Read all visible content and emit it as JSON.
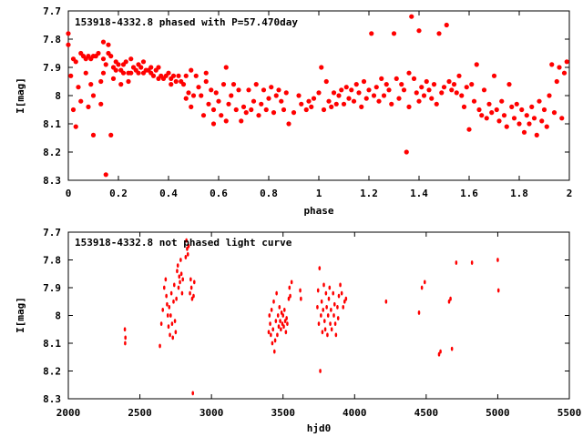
{
  "chart_data": [
    {
      "type": "scatter",
      "title": "153918-4332.8 phased with P=57.470day",
      "xlabel": "phase",
      "ylabel": "I[mag]",
      "xlim": [
        0,
        2
      ],
      "ylim": [
        8.3,
        7.7
      ],
      "y_inverted": true,
      "x_ticks": [
        "0",
        "0.2",
        "0.4",
        "0.6",
        "0.8",
        "1",
        "1.2",
        "1.4",
        "1.6",
        "1.8",
        "2"
      ],
      "y_ticks": [
        "7.7",
        "7.8",
        "7.9",
        "8",
        "8.1",
        "8.2",
        "8.3"
      ],
      "grid": false,
      "marker_color": "#ff0000",
      "points": [
        [
          0.0,
          7.78
        ],
        [
          0.0,
          7.82
        ],
        [
          0.01,
          7.93
        ],
        [
          0.02,
          7.87
        ],
        [
          0.02,
          8.05
        ],
        [
          0.03,
          8.11
        ],
        [
          0.03,
          7.88
        ],
        [
          0.04,
          7.97
        ],
        [
          0.05,
          7.85
        ],
        [
          0.05,
          8.02
        ],
        [
          0.06,
          7.86
        ],
        [
          0.07,
          7.87
        ],
        [
          0.07,
          7.92
        ],
        [
          0.08,
          7.86
        ],
        [
          0.08,
          8.04
        ],
        [
          0.09,
          7.87
        ],
        [
          0.09,
          7.96
        ],
        [
          0.1,
          7.86
        ],
        [
          0.1,
          8.0
        ],
        [
          0.1,
          8.14
        ],
        [
          0.11,
          7.86
        ],
        [
          0.12,
          7.85
        ],
        [
          0.13,
          7.95
        ],
        [
          0.13,
          8.03
        ],
        [
          0.14,
          7.81
        ],
        [
          0.14,
          7.87
        ],
        [
          0.14,
          7.92
        ],
        [
          0.15,
          7.89
        ],
        [
          0.15,
          8.28
        ],
        [
          0.16,
          7.85
        ],
        [
          0.16,
          7.82
        ],
        [
          0.17,
          7.86
        ],
        [
          0.17,
          8.14
        ],
        [
          0.18,
          7.9
        ],
        [
          0.18,
          7.94
        ],
        [
          0.19,
          7.88
        ],
        [
          0.19,
          7.91
        ],
        [
          0.2,
          7.89
        ],
        [
          0.21,
          7.96
        ],
        [
          0.21,
          7.91
        ],
        [
          0.22,
          7.89
        ],
        [
          0.22,
          7.92
        ],
        [
          0.23,
          7.88
        ],
        [
          0.24,
          7.92
        ],
        [
          0.24,
          7.95
        ],
        [
          0.25,
          7.92
        ],
        [
          0.25,
          7.87
        ],
        [
          0.26,
          7.9
        ],
        [
          0.27,
          7.91
        ],
        [
          0.28,
          7.89
        ],
        [
          0.28,
          7.92
        ],
        [
          0.29,
          7.9
        ],
        [
          0.3,
          7.88
        ],
        [
          0.3,
          7.92
        ],
        [
          0.31,
          7.91
        ],
        [
          0.32,
          7.91
        ],
        [
          0.33,
          7.92
        ],
        [
          0.33,
          7.9
        ],
        [
          0.34,
          7.93
        ],
        [
          0.35,
          7.91
        ],
        [
          0.36,
          7.9
        ],
        [
          0.36,
          7.94
        ],
        [
          0.37,
          7.93
        ],
        [
          0.38,
          7.94
        ],
        [
          0.39,
          7.93
        ],
        [
          0.4,
          7.92
        ],
        [
          0.41,
          7.96
        ],
        [
          0.41,
          7.94
        ],
        [
          0.42,
          7.93
        ],
        [
          0.43,
          7.95
        ],
        [
          0.44,
          7.93
        ],
        [
          0.45,
          7.95
        ],
        [
          0.46,
          7.96
        ],
        [
          0.47,
          7.93
        ],
        [
          0.47,
          8.01
        ],
        [
          0.48,
          7.99
        ],
        [
          0.49,
          8.04
        ],
        [
          0.49,
          7.91
        ],
        [
          0.5,
          8.0
        ],
        [
          0.51,
          7.93
        ],
        [
          0.52,
          7.97
        ],
        [
          0.53,
          8.0
        ],
        [
          0.54,
          8.07
        ],
        [
          0.55,
          7.95
        ],
        [
          0.55,
          7.92
        ],
        [
          0.56,
          8.03
        ],
        [
          0.57,
          7.98
        ],
        [
          0.58,
          8.05
        ],
        [
          0.58,
          8.1
        ],
        [
          0.59,
          7.99
        ],
        [
          0.6,
          8.02
        ],
        [
          0.61,
          8.07
        ],
        [
          0.62,
          7.96
        ],
        [
          0.63,
          8.09
        ],
        [
          0.63,
          7.9
        ],
        [
          0.64,
          8.03
        ],
        [
          0.65,
          8.0
        ],
        [
          0.66,
          7.96
        ],
        [
          0.67,
          8.05
        ],
        [
          0.68,
          7.98
        ],
        [
          0.69,
          8.09
        ],
        [
          0.7,
          8.04
        ],
        [
          0.71,
          8.06
        ],
        [
          0.72,
          7.98
        ],
        [
          0.73,
          8.05
        ],
        [
          0.74,
          8.02
        ],
        [
          0.75,
          7.96
        ],
        [
          0.76,
          8.07
        ],
        [
          0.77,
          8.03
        ],
        [
          0.78,
          7.98
        ],
        [
          0.79,
          8.05
        ],
        [
          0.8,
          8.01
        ],
        [
          0.81,
          7.97
        ],
        [
          0.82,
          8.06
        ],
        [
          0.83,
          8.0
        ],
        [
          0.84,
          7.98
        ],
        [
          0.85,
          8.02
        ],
        [
          0.86,
          8.05
        ],
        [
          0.87,
          7.99
        ],
        [
          0.88,
          8.1
        ],
        [
          0.9,
          8.06
        ],
        [
          0.92,
          8.0
        ],
        [
          0.93,
          8.03
        ],
        [
          0.95,
          8.05
        ],
        [
          0.96,
          8.02
        ],
        [
          0.97,
          8.04
        ],
        [
          0.98,
          8.01
        ],
        [
          1.0,
          7.99
        ],
        [
          1.01,
          7.9
        ],
        [
          1.02,
          8.05
        ],
        [
          1.03,
          7.95
        ],
        [
          1.04,
          8.02
        ],
        [
          1.05,
          8.04
        ],
        [
          1.06,
          7.99
        ],
        [
          1.07,
          8.03
        ],
        [
          1.08,
          8.0
        ],
        [
          1.09,
          7.98
        ],
        [
          1.1,
          8.03
        ],
        [
          1.11,
          7.97
        ],
        [
          1.12,
          8.01
        ],
        [
          1.13,
          7.98
        ],
        [
          1.14,
          8.02
        ],
        [
          1.15,
          7.96
        ],
        [
          1.16,
          7.99
        ],
        [
          1.17,
          8.04
        ],
        [
          1.18,
          7.95
        ],
        [
          1.19,
          8.01
        ],
        [
          1.2,
          7.98
        ],
        [
          1.21,
          7.78
        ],
        [
          1.22,
          8.0
        ],
        [
          1.23,
          7.97
        ],
        [
          1.24,
          8.02
        ],
        [
          1.25,
          7.94
        ],
        [
          1.26,
          8.0
        ],
        [
          1.27,
          7.96
        ],
        [
          1.28,
          7.98
        ],
        [
          1.29,
          8.03
        ],
        [
          1.3,
          7.78
        ],
        [
          1.31,
          7.94
        ],
        [
          1.32,
          8.01
        ],
        [
          1.33,
          7.96
        ],
        [
          1.34,
          7.98
        ],
        [
          1.35,
          8.2
        ],
        [
          1.36,
          7.92
        ],
        [
          1.36,
          8.04
        ],
        [
          1.37,
          7.72
        ],
        [
          1.38,
          7.94
        ],
        [
          1.39,
          7.99
        ],
        [
          1.4,
          8.02
        ],
        [
          1.4,
          7.77
        ],
        [
          1.41,
          7.97
        ],
        [
          1.42,
          8.0
        ],
        [
          1.43,
          7.95
        ],
        [
          1.44,
          7.98
        ],
        [
          1.45,
          8.01
        ],
        [
          1.46,
          7.96
        ],
        [
          1.47,
          8.03
        ],
        [
          1.48,
          7.78
        ],
        [
          1.49,
          7.99
        ],
        [
          1.5,
          7.97
        ],
        [
          1.51,
          7.75
        ],
        [
          1.52,
          7.95
        ],
        [
          1.53,
          7.98
        ],
        [
          1.54,
          7.96
        ],
        [
          1.55,
          7.99
        ],
        [
          1.56,
          7.93
        ],
        [
          1.57,
          8.0
        ],
        [
          1.58,
          8.04
        ],
        [
          1.59,
          7.97
        ],
        [
          1.6,
          8.12
        ],
        [
          1.61,
          7.96
        ],
        [
          1.62,
          8.02
        ],
        [
          1.63,
          7.89
        ],
        [
          1.64,
          8.05
        ],
        [
          1.65,
          8.07
        ],
        [
          1.66,
          7.98
        ],
        [
          1.67,
          8.08
        ],
        [
          1.68,
          8.03
        ],
        [
          1.69,
          8.06
        ],
        [
          1.7,
          7.93
        ],
        [
          1.71,
          8.05
        ],
        [
          1.72,
          8.09
        ],
        [
          1.73,
          8.02
        ],
        [
          1.74,
          8.07
        ],
        [
          1.75,
          8.11
        ],
        [
          1.76,
          7.96
        ],
        [
          1.77,
          8.04
        ],
        [
          1.78,
          8.08
        ],
        [
          1.79,
          8.03
        ],
        [
          1.8,
          8.1
        ],
        [
          1.81,
          8.05
        ],
        [
          1.82,
          8.13
        ],
        [
          1.83,
          8.07
        ],
        [
          1.84,
          8.1
        ],
        [
          1.85,
          8.04
        ],
        [
          1.86,
          8.08
        ],
        [
          1.87,
          8.14
        ],
        [
          1.88,
          8.02
        ],
        [
          1.89,
          8.09
        ],
        [
          1.9,
          8.05
        ],
        [
          1.91,
          8.11
        ],
        [
          1.92,
          8.0
        ],
        [
          1.93,
          7.89
        ],
        [
          1.94,
          8.06
        ],
        [
          1.95,
          7.95
        ],
        [
          1.96,
          7.9
        ],
        [
          1.97,
          8.08
        ],
        [
          1.98,
          7.92
        ],
        [
          1.99,
          7.88
        ]
      ]
    },
    {
      "type": "scatter",
      "title": "153918-4332.8 not phased light curve",
      "xlabel": "hjd0",
      "ylabel": "I[mag]",
      "xlim": [
        2000,
        5500
      ],
      "ylim": [
        8.3,
        7.7
      ],
      "y_inverted": true,
      "x_ticks": [
        "2000",
        "2500",
        "3000",
        "3500",
        "4000",
        "4500",
        "5000",
        "5500"
      ],
      "y_ticks": [
        "7.7",
        "7.8",
        "7.9",
        "8",
        "8.1",
        "8.2",
        "8.3"
      ],
      "grid": false,
      "marker_color": "#ff0000",
      "points": [
        [
          2395,
          8.05
        ],
        [
          2397,
          8.1
        ],
        [
          2399,
          8.08
        ],
        [
          2640,
          8.11
        ],
        [
          2650,
          8.03
        ],
        [
          2660,
          7.98
        ],
        [
          2670,
          7.9
        ],
        [
          2680,
          7.87
        ],
        [
          2685,
          7.93
        ],
        [
          2690,
          7.96
        ],
        [
          2695,
          8.0
        ],
        [
          2700,
          8.04
        ],
        [
          2705,
          7.97
        ],
        [
          2710,
          8.07
        ],
        [
          2715,
          8.0
        ],
        [
          2720,
          7.92
        ],
        [
          2725,
          8.03
        ],
        [
          2730,
          8.08
        ],
        [
          2735,
          7.95
        ],
        [
          2740,
          7.89
        ],
        [
          2745,
          8.02
        ],
        [
          2750,
          8.06
        ],
        [
          2755,
          7.94
        ],
        [
          2760,
          7.84
        ],
        [
          2765,
          7.82
        ],
        [
          2770,
          7.9
        ],
        [
          2775,
          7.86
        ],
        [
          2780,
          7.88
        ],
        [
          2785,
          7.8
        ],
        [
          2790,
          7.85
        ],
        [
          2795,
          7.92
        ],
        [
          2800,
          7.87
        ],
        [
          2820,
          7.79
        ],
        [
          2825,
          7.73
        ],
        [
          2830,
          7.76
        ],
        [
          2835,
          7.78
        ],
        [
          2840,
          7.75
        ],
        [
          2850,
          7.92
        ],
        [
          2855,
          7.87
        ],
        [
          2860,
          7.9
        ],
        [
          2865,
          7.94
        ],
        [
          2870,
          8.28
        ],
        [
          2875,
          7.93
        ],
        [
          2880,
          7.88
        ],
        [
          3400,
          8.06
        ],
        [
          3405,
          8.0
        ],
        [
          3410,
          8.03
        ],
        [
          3415,
          8.07
        ],
        [
          3420,
          7.98
        ],
        [
          3425,
          8.1
        ],
        [
          3430,
          8.05
        ],
        [
          3435,
          7.95
        ],
        [
          3440,
          8.13
        ],
        [
          3445,
          8.09
        ],
        [
          3450,
          8.02
        ],
        [
          3455,
          7.92
        ],
        [
          3460,
          8.07
        ],
        [
          3465,
          8.0
        ],
        [
          3470,
          8.04
        ],
        [
          3475,
          7.97
        ],
        [
          3480,
          8.02
        ],
        [
          3485,
          8.05
        ],
        [
          3490,
          7.99
        ],
        [
          3495,
          8.03
        ],
        [
          3500,
          8.0
        ],
        [
          3505,
          8.04
        ],
        [
          3510,
          7.98
        ],
        [
          3515,
          8.02
        ],
        [
          3520,
          8.06
        ],
        [
          3525,
          8.01
        ],
        [
          3530,
          8.03
        ],
        [
          3540,
          7.94
        ],
        [
          3545,
          7.9
        ],
        [
          3550,
          7.93
        ],
        [
          3560,
          7.88
        ],
        [
          3620,
          7.91
        ],
        [
          3625,
          7.94
        ],
        [
          3740,
          7.97
        ],
        [
          3745,
          7.91
        ],
        [
          3750,
          8.03
        ],
        [
          3755,
          7.83
        ],
        [
          3760,
          8.2
        ],
        [
          3765,
          8.0
        ],
        [
          3770,
          7.95
        ],
        [
          3775,
          8.06
        ],
        [
          3780,
          7.98
        ],
        [
          3785,
          7.89
        ],
        [
          3790,
          8.02
        ],
        [
          3795,
          8.05
        ],
        [
          3800,
          7.92
        ],
        [
          3805,
          7.97
        ],
        [
          3810,
          8.07
        ],
        [
          3815,
          8.0
        ],
        [
          3820,
          7.94
        ],
        [
          3825,
          7.9
        ],
        [
          3830,
          8.03
        ],
        [
          3835,
          7.98
        ],
        [
          3840,
          8.05
        ],
        [
          3850,
          7.92
        ],
        [
          3855,
          8.0
        ],
        [
          3860,
          7.96
        ],
        [
          3865,
          8.03
        ],
        [
          3870,
          8.07
        ],
        [
          3880,
          7.97
        ],
        [
          3885,
          8.01
        ],
        [
          3890,
          7.93
        ],
        [
          3900,
          7.89
        ],
        [
          3910,
          7.92
        ],
        [
          3920,
          7.97
        ],
        [
          3930,
          7.95
        ],
        [
          3940,
          7.94
        ],
        [
          4220,
          7.95
        ],
        [
          4450,
          7.99
        ],
        [
          4470,
          7.9
        ],
        [
          4490,
          7.88
        ],
        [
          4590,
          8.14
        ],
        [
          4600,
          8.13
        ],
        [
          4660,
          7.95
        ],
        [
          4670,
          7.94
        ],
        [
          4680,
          8.12
        ],
        [
          4710,
          7.81
        ],
        [
          4820,
          7.81
        ],
        [
          5000,
          7.8
        ],
        [
          5005,
          7.91
        ]
      ]
    }
  ]
}
